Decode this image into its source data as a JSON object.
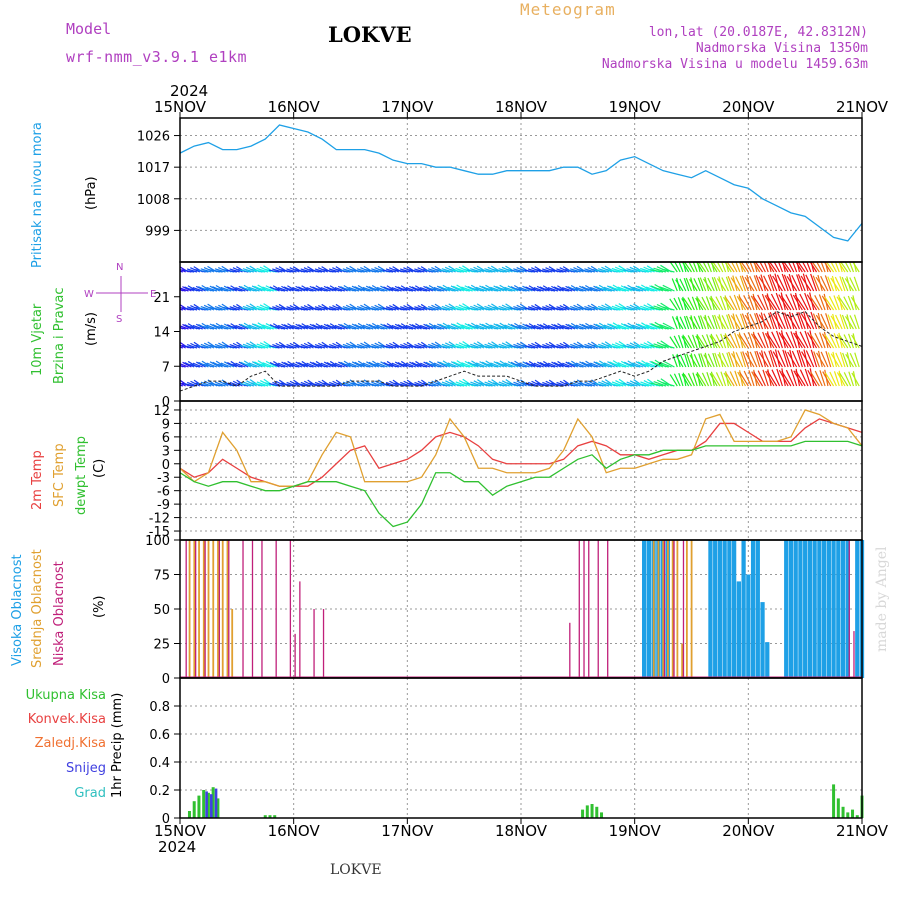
{
  "header": {
    "model_label": "Model",
    "model_name": "wrf-nmm_v3.9.1 e1km",
    "station": "LOKVE",
    "meteogram_label": "Meteogram",
    "coords": "lon,lat (20.0187E, 42.8312N)",
    "elevation": "Nadmorska Visina 1350m",
    "model_elevation": "Nadmorska Visina u modelu 1459.63m",
    "year_top": "2024",
    "year_bottom": "2024",
    "footer_station": "LOKVE",
    "credit": "made by Angel"
  },
  "colors": {
    "pressure": "#1ea0e6",
    "temp2m": "#e84040",
    "sfc_temp": "#e0a030",
    "dewpoint": "#30c030",
    "high_cloud": "#1ea0e6",
    "mid_cloud": "#e0a030",
    "low_cloud": "#c0207a",
    "total_precip": "#30c030",
    "conv_precip": "#e84040",
    "frz_precip": "#f07030",
    "snow": "#4040e0",
    "graupel": "#30c0c0",
    "title_purple": "#b040c0",
    "meteogram_orange": "#e8b060"
  },
  "axis_days": [
    "15NOV",
    "16NOV",
    "17NOV",
    "18NOV",
    "19NOV",
    "20NOV",
    "21NOV"
  ],
  "panels": {
    "pressure": {
      "labels": [
        "Pritisak na nivou mora"
      ],
      "unit": "(hPa)",
      "ticks": [
        "1026",
        "1017",
        "1008",
        "999"
      ]
    },
    "wind": {
      "labels": [
        "10m Vjetar",
        "Brzina i Pravac"
      ],
      "unit": "(m/s)",
      "ticks": [
        "21",
        "14",
        "7",
        "0"
      ],
      "compass": {
        "n": "N",
        "s": "S",
        "e": "E",
        "w": "W"
      }
    },
    "temp": {
      "labels": [
        "2m Temp",
        "SFC Temp",
        "dewpt Temp"
      ],
      "unit": "(C)",
      "ticks": [
        "12",
        "9",
        "6",
        "3",
        "0",
        "-3",
        "-6",
        "-9",
        "-12",
        "-15"
      ]
    },
    "cloud": {
      "labels": [
        "Visoka Oblacnost",
        "Srednja Oblacnost",
        "Niska Oblacnost"
      ],
      "unit": "(%)",
      "ticks": [
        "100",
        "75",
        "50",
        "25",
        "0"
      ]
    },
    "precip": {
      "labels": [
        "Ukupna Kisa",
        "Konvek.Kisa",
        "Zaledj.Kisa",
        "Snijeg",
        "Grad"
      ],
      "unit": "1hr Precip (mm)",
      "ticks": [
        "0.8",
        "0.6",
        "0.4",
        "0.2",
        "0"
      ]
    }
  },
  "chart_data": {
    "type": "line",
    "x_hours_range": [
      0,
      144
    ],
    "x_hours": [
      0,
      3,
      6,
      9,
      12,
      15,
      18,
      21,
      24,
      27,
      30,
      33,
      36,
      39,
      42,
      45,
      48,
      51,
      54,
      57,
      60,
      63,
      66,
      69,
      72,
      75,
      78,
      81,
      84,
      87,
      90,
      93,
      96,
      99,
      102,
      105,
      108,
      111,
      114,
      117,
      120,
      123,
      126,
      129,
      132,
      135,
      138,
      141,
      144
    ],
    "pressure_hpa": {
      "ylim": [
        990,
        1031
      ],
      "values": [
        1021,
        1023,
        1024,
        1022,
        1022,
        1023,
        1025,
        1029,
        1028,
        1027,
        1025,
        1022,
        1022,
        1022,
        1021,
        1019,
        1018,
        1018,
        1017,
        1017,
        1016,
        1015,
        1015,
        1016,
        1016,
        1016,
        1016,
        1017,
        1017,
        1015,
        1016,
        1019,
        1020,
        1018,
        1016,
        1015,
        1014,
        1016,
        1014,
        1012,
        1011,
        1008,
        1006,
        1004,
        1003,
        1000,
        997,
        996,
        1001
      ]
    },
    "wind_speed_ms": {
      "ylim": [
        0,
        28
      ],
      "values": [
        2,
        3,
        4,
        4,
        3,
        5,
        6,
        3,
        3,
        3,
        3,
        3,
        4,
        4,
        4,
        3,
        3,
        3,
        4,
        5,
        6,
        5,
        5,
        5,
        4,
        3,
        3,
        3,
        4,
        4,
        5,
        6,
        5,
        6,
        8,
        9,
        10,
        11,
        12,
        14,
        15,
        16,
        18,
        17,
        18,
        15,
        13,
        12,
        11
      ]
    },
    "temperature_c": {
      "ylim": [
        -17,
        14
      ],
      "series": [
        {
          "name": "2m Temp",
          "values": [
            -1,
            -3,
            -2,
            1,
            -1,
            -3,
            -4,
            -5,
            -5,
            -5,
            -3,
            0,
            3,
            4,
            -1,
            0,
            1,
            3,
            6,
            7,
            6,
            4,
            1,
            0,
            0,
            0,
            0,
            1,
            4,
            5,
            4,
            2,
            2,
            1,
            2,
            3,
            3,
            5,
            9,
            9,
            7,
            5,
            5,
            5,
            8,
            10,
            9,
            8,
            7
          ]
        },
        {
          "name": "SFC Temp",
          "values": [
            -1,
            -4,
            -2,
            7,
            3,
            -4,
            -4,
            -5,
            -5,
            -4,
            2,
            7,
            6,
            -4,
            -4,
            -4,
            -4,
            -3,
            2,
            10,
            6,
            -1,
            -1,
            -2,
            -2,
            -2,
            -1,
            3,
            10,
            6,
            -2,
            -1,
            -1,
            0,
            1,
            1,
            2,
            10,
            11,
            5,
            5,
            5,
            5,
            6,
            12,
            11,
            9,
            8,
            4
          ]
        },
        {
          "name": "dewpt Temp",
          "values": [
            -2,
            -4,
            -5,
            -4,
            -4,
            -5,
            -6,
            -6,
            -5,
            -4,
            -4,
            -4,
            -5,
            -6,
            -11,
            -14,
            -13,
            -9,
            -2,
            -2,
            -4,
            -4,
            -7,
            -5,
            -4,
            -3,
            -3,
            -1,
            1,
            2,
            -1,
            1,
            2,
            2,
            3,
            3,
            3,
            4,
            4,
            4,
            4,
            4,
            4,
            4,
            5,
            5,
            5,
            5,
            4
          ]
        }
      ]
    },
    "cloud_pct": {
      "ylim": [
        0,
        100
      ],
      "high_bars": [
        [
          98,
          100
        ],
        [
          99,
          100
        ],
        [
          100,
          100
        ],
        [
          101,
          100
        ],
        [
          102,
          100
        ],
        [
          103,
          100
        ],
        [
          112,
          100
        ],
        [
          113,
          100
        ],
        [
          114,
          100
        ],
        [
          115,
          100
        ],
        [
          116,
          100
        ],
        [
          117,
          100
        ],
        [
          118,
          70
        ],
        [
          119,
          100
        ],
        [
          120,
          75
        ],
        [
          121,
          100
        ],
        [
          122,
          100
        ],
        [
          123,
          55
        ],
        [
          124,
          26
        ],
        [
          128,
          100
        ],
        [
          129,
          100
        ],
        [
          130,
          100
        ],
        [
          131,
          100
        ],
        [
          132,
          100
        ],
        [
          133,
          100
        ],
        [
          134,
          100
        ],
        [
          135,
          100
        ],
        [
          136,
          100
        ],
        [
          137,
          100
        ],
        [
          138,
          100
        ],
        [
          139,
          100
        ],
        [
          140,
          100
        ],
        [
          141,
          100
        ],
        [
          143,
          100
        ],
        [
          144,
          100
        ]
      ],
      "mid_bars": [
        [
          2,
          100
        ],
        [
          3,
          100
        ],
        [
          4,
          100
        ],
        [
          5,
          100
        ],
        [
          6,
          100
        ],
        [
          7,
          100
        ],
        [
          8,
          100
        ],
        [
          9,
          100
        ],
        [
          10,
          100
        ],
        [
          11,
          50
        ],
        [
          100,
          100
        ],
        [
          101,
          100
        ],
        [
          102,
          100
        ],
        [
          103,
          100
        ],
        [
          104,
          100
        ],
        [
          105,
          100
        ],
        [
          106,
          25
        ],
        [
          107,
          100
        ],
        [
          108,
          100
        ]
      ],
      "low_bars": [
        [
          1,
          100
        ],
        [
          3,
          100
        ],
        [
          5,
          100
        ],
        [
          8,
          100
        ],
        [
          10,
          100
        ],
        [
          13,
          100
        ],
        [
          15,
          100
        ],
        [
          17,
          100
        ],
        [
          20,
          100
        ],
        [
          23,
          100
        ],
        [
          24,
          32
        ],
        [
          25,
          70
        ],
        [
          28,
          50
        ],
        [
          30,
          50
        ],
        [
          82,
          40
        ],
        [
          84,
          100
        ],
        [
          85,
          100
        ],
        [
          86,
          100
        ],
        [
          88,
          100
        ],
        [
          90,
          100
        ],
        [
          102,
          100
        ],
        [
          104,
          100
        ],
        [
          106,
          100
        ],
        [
          141,
          100
        ],
        [
          142,
          34
        ]
      ]
    },
    "precip_mm": {
      "ylim": [
        0,
        1.0
      ],
      "total": [
        [
          2,
          0.05
        ],
        [
          3,
          0.12
        ],
        [
          4,
          0.16
        ],
        [
          5,
          0.2
        ],
        [
          6,
          0.18
        ],
        [
          7,
          0.22
        ],
        [
          8,
          0.14
        ],
        [
          18,
          0.02
        ],
        [
          19,
          0.02
        ],
        [
          20,
          0.02
        ],
        [
          85,
          0.06
        ],
        [
          86,
          0.09
        ],
        [
          87,
          0.1
        ],
        [
          88,
          0.08
        ],
        [
          89,
          0.04
        ],
        [
          138,
          0.24
        ],
        [
          139,
          0.14
        ],
        [
          140,
          0.08
        ],
        [
          141,
          0.04
        ],
        [
          142,
          0.06
        ],
        [
          143,
          0.02
        ],
        [
          144,
          0.16
        ]
      ],
      "snow": [
        [
          5,
          0.19
        ],
        [
          6,
          0.17
        ],
        [
          7,
          0.21
        ]
      ]
    }
  }
}
